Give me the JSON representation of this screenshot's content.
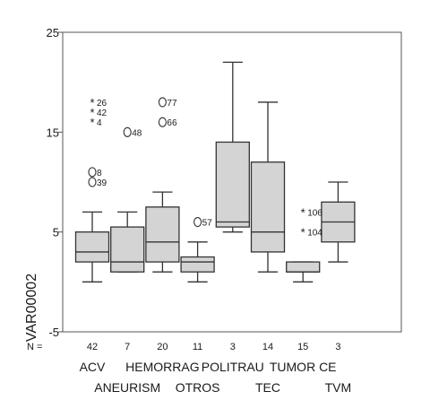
{
  "chart_data": {
    "type": "boxplot",
    "ylabel": "VAR00002",
    "ylim": [
      -5,
      25
    ],
    "yticks": [
      "-5",
      "5",
      "15",
      "25"
    ],
    "n_prefix": "N =",
    "categories": [
      "ACV",
      "ANEURISM",
      "HEMORRAG",
      "OTROS",
      "POLITRAU",
      "TEC",
      "TUMOR CE",
      "TVM"
    ],
    "n": [
      "42",
      "7",
      "20",
      "11",
      "3",
      "14",
      "15",
      "3"
    ],
    "boxes": [
      {
        "whisker_low": 0,
        "q1": 2,
        "median": 3,
        "q3": 5,
        "whisker_high": 7
      },
      {
        "whisker_low": 1,
        "q1": 1,
        "median": 2,
        "q3": 5.5,
        "whisker_high": 7
      },
      {
        "whisker_low": 1,
        "q1": 2,
        "median": 4,
        "q3": 7.5,
        "whisker_high": 9
      },
      {
        "whisker_low": 0,
        "q1": 1,
        "median": 2,
        "q3": 2.5,
        "whisker_high": 4
      },
      {
        "whisker_low": 5,
        "q1": 5.5,
        "median": 6,
        "q3": 14,
        "whisker_high": 22
      },
      {
        "whisker_low": 1,
        "q1": 3,
        "median": 5,
        "q3": 12,
        "whisker_high": 18
      },
      {
        "whisker_low": 0,
        "q1": 1,
        "median": 1,
        "q3": 2,
        "whisker_high": 2
      },
      {
        "whisker_low": 2,
        "q1": 4,
        "median": 6,
        "q3": 8,
        "whisker_high": 10
      }
    ],
    "outliers": [
      {
        "category": "ACV",
        "y": 18,
        "marker": "*",
        "label": "26"
      },
      {
        "category": "ACV",
        "y": 17,
        "marker": "*",
        "label": "42"
      },
      {
        "category": "ACV",
        "y": 16,
        "marker": "*",
        "label": "4"
      },
      {
        "category": "ACV",
        "y": 11,
        "marker": "O",
        "label": "8"
      },
      {
        "category": "ACV",
        "y": 10,
        "marker": "O",
        "label": "39"
      },
      {
        "category": "ANEURISM",
        "y": 15,
        "marker": "O",
        "label": "48"
      },
      {
        "category": "HEMORRAG",
        "y": 18,
        "marker": "O",
        "label": "77"
      },
      {
        "category": "HEMORRAG",
        "y": 16,
        "marker": "O",
        "label": "66"
      },
      {
        "category": "OTROS",
        "y": 6,
        "marker": "O",
        "label": "57"
      },
      {
        "category": "TUMOR CE",
        "y": 7,
        "marker": "*",
        "label": "106"
      },
      {
        "category": "TUMOR CE",
        "y": 5,
        "marker": "*",
        "label": "104"
      }
    ],
    "colors": {
      "box_fill": "#d4d4d4",
      "line": "#333333",
      "frame": "#555555"
    }
  }
}
